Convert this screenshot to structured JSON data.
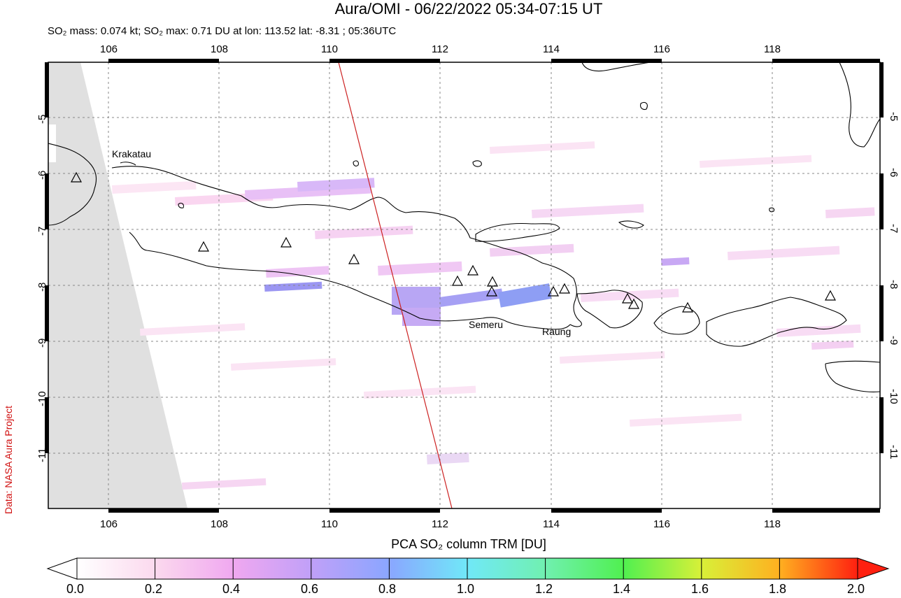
{
  "header": {
    "title": "Aura/OMI - 06/22/2022 05:34-07:15 UT",
    "subtitle": "SO₂ mass: 0.074 kt; SO₂ max: 0.71 DU at lon: 113.52 lat: -8.31 ; 05:36UTC"
  },
  "credit": "Data: NASA Aura Project",
  "map": {
    "lon_ticks": [
      "106",
      "108",
      "110",
      "112",
      "114",
      "116",
      "118"
    ],
    "lat_ticks": [
      "-5",
      "-6",
      "-7",
      "-8",
      "-9",
      "-10",
      "-11"
    ],
    "volcano_labels": {
      "krakatau": "Krakatau",
      "semeru": "Semeru",
      "raung": "Raung"
    },
    "colors": {
      "orbit_line": "#cc2222",
      "no_data": "#e0e0e0",
      "frame": "#000000"
    }
  },
  "colorbar": {
    "title": "PCA SO₂ column TRM [DU]",
    "ticks": [
      "0.0",
      "0.2",
      "0.4",
      "0.6",
      "0.8",
      "1.0",
      "1.2",
      "1.4",
      "1.6",
      "1.8",
      "2.0"
    ],
    "colors": [
      "#ffffff",
      "#fbd9ee",
      "#f0a8f0",
      "#c0a0f8",
      "#8aa6ff",
      "#70e8f8",
      "#70f0b0",
      "#50f050",
      "#d8f038",
      "#ffb020",
      "#ff2010"
    ]
  }
}
